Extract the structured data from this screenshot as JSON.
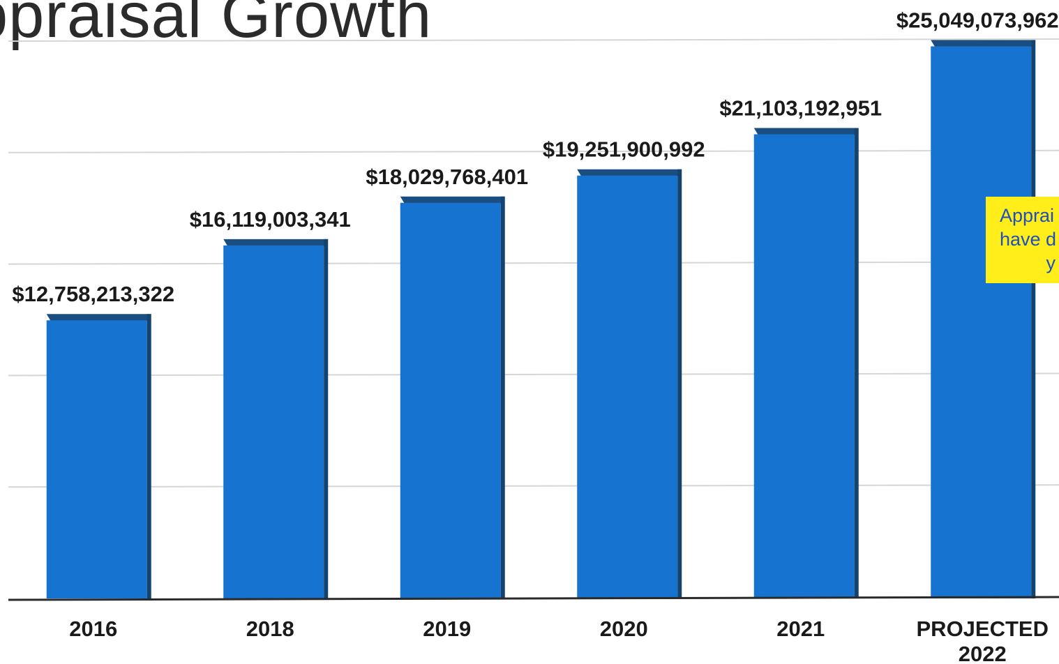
{
  "chart_data": {
    "type": "bar",
    "title": "ppraisal Growth",
    "categories": [
      "2016",
      "2018",
      "2019",
      "2020",
      "2021",
      "PROJECTED 2022"
    ],
    "category_lines": [
      [
        "2016"
      ],
      [
        "2018"
      ],
      [
        "2019"
      ],
      [
        "2020"
      ],
      [
        "2021"
      ],
      [
        "PROJECTED",
        "2022"
      ]
    ],
    "values": [
      12758213322,
      16119003341,
      18029768401,
      19251900992,
      21103192951,
      25049073962
    ],
    "value_labels": [
      "$12,758,213,322",
      "$16,119,003,341",
      "$18,029,768,401",
      "$19,251,900,992",
      "$21,103,192,951",
      "$25,049,073,962"
    ],
    "xlabel": "",
    "ylabel": "",
    "ylim": [
      0,
      25000000000
    ],
    "grid": true,
    "legend": "none",
    "colors": {
      "bar": "#1673cf",
      "bar_shadow": "#13436e",
      "bar_top": "#1b4e80",
      "gridline": "#d6d6d6",
      "axis": "#2a2a2a",
      "note_background": "#ffee1a",
      "note_text": "#1f4fb8"
    },
    "annotation": {
      "lines": [
        "Apprai",
        "have d",
        "y"
      ]
    }
  }
}
